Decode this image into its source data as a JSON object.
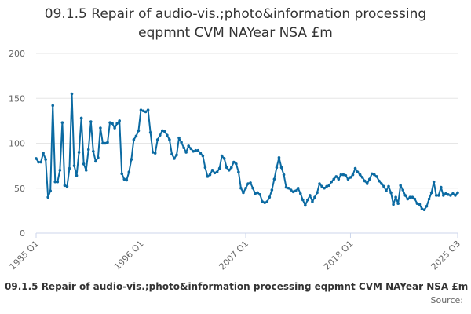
{
  "chart_data": {
    "type": "line",
    "title": "09.1.5 Repair of audio-vis.;photo&information processing\neqpmnt CVM NAYear NSA £m",
    "xlabel": "",
    "ylabel": "",
    "ylim": [
      0,
      200
    ],
    "yticks": [
      0,
      50,
      100,
      150,
      200
    ],
    "xtick_labels": [
      "1985 Q1",
      "1996 Q1",
      "2007 Q1",
      "2018 Q1",
      "2025 Q3"
    ],
    "grid": true,
    "legend_position": "bottom",
    "legend_label": "09.1.5 Repair of audio-vis.;photo&information processing eqpmnt CVM NAYear NSA £m",
    "source_label": "Source:",
    "series": [
      {
        "name": "09.1.5 Repair of audio-vis.;photo&information processing eqpmnt CVM NAYear NSA £m",
        "color": "#0b6aa2",
        "values": [
          83,
          79,
          79,
          89,
          82,
          40,
          47,
          142,
          57,
          57,
          70,
          123,
          53,
          52,
          72,
          155,
          75,
          64,
          90,
          128,
          77,
          70,
          93,
          124,
          91,
          80,
          84,
          117,
          100,
          100,
          101,
          123,
          122,
          117,
          122,
          125,
          66,
          60,
          59,
          68,
          82,
          104,
          108,
          114,
          137,
          136,
          135,
          137,
          112,
          90,
          89,
          104,
          109,
          114,
          113,
          109,
          104,
          88,
          83,
          87,
          106,
          101,
          95,
          90,
          97,
          94,
          91,
          92,
          92,
          89,
          86,
          73,
          63,
          65,
          70,
          67,
          68,
          72,
          86,
          83,
          73,
          70,
          73,
          79,
          77,
          68,
          50,
          45,
          50,
          55,
          56,
          50,
          44,
          45,
          43,
          35,
          34,
          35,
          40,
          48,
          60,
          73,
          84,
          73,
          65,
          51,
          50,
          48,
          46,
          47,
          50,
          44,
          37,
          31,
          37,
          42,
          35,
          40,
          45,
          55,
          52,
          50,
          52,
          53,
          57,
          60,
          63,
          60,
          65,
          65,
          64,
          60,
          62,
          65,
          72,
          68,
          65,
          62,
          58,
          55,
          60,
          66,
          65,
          63,
          58,
          55,
          52,
          47,
          52,
          45,
          32,
          40,
          33,
          53,
          48,
          42,
          38,
          40,
          40,
          38,
          33,
          32,
          27,
          26,
          30,
          38,
          45,
          57,
          42,
          42,
          51,
          42,
          44,
          43,
          42,
          44,
          42,
          45
        ]
      }
    ]
  }
}
